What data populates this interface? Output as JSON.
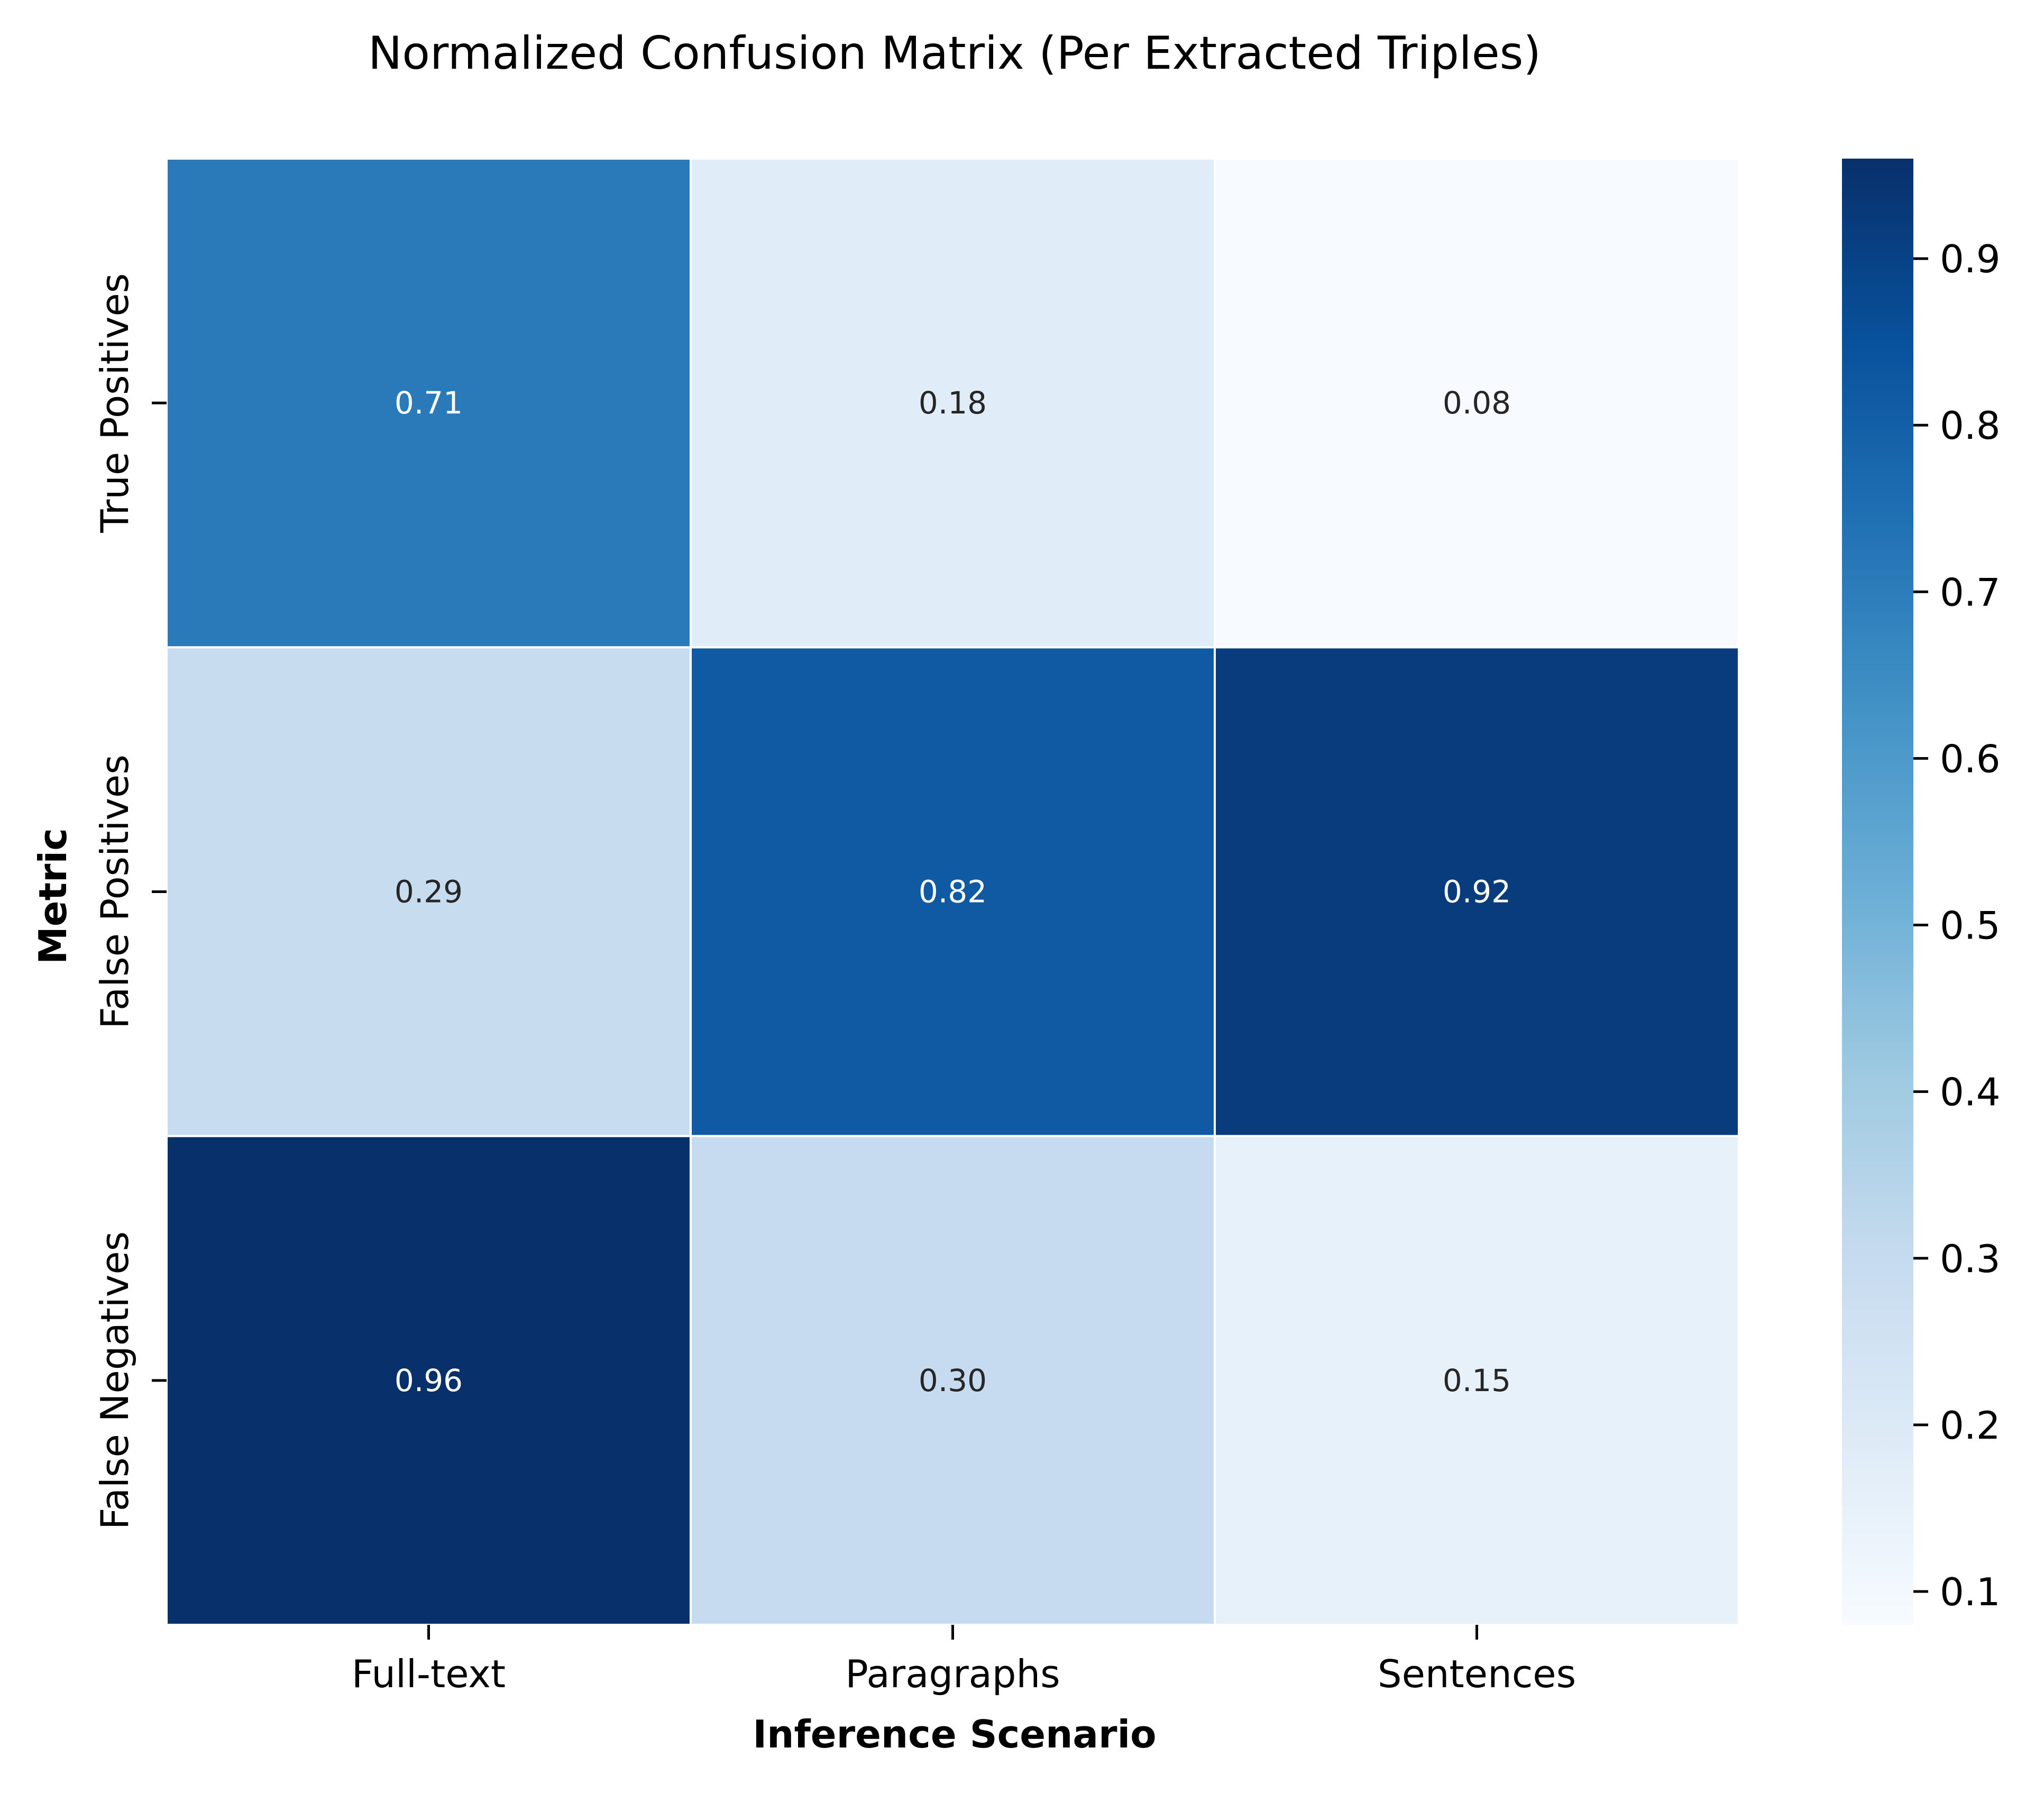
{
  "chart_data": {
    "type": "heatmap",
    "title": "Normalized Confusion Matrix (Per Extracted Triples)",
    "xlabel": "Inference Scenario",
    "ylabel": "Metric",
    "x_categories": [
      "Full-text",
      "Paragraphs",
      "Sentences"
    ],
    "y_categories": [
      "True Positives",
      "False Positives",
      "False Negatives"
    ],
    "values": [
      [
        0.71,
        0.18,
        0.08
      ],
      [
        0.29,
        0.82,
        0.92
      ],
      [
        0.96,
        0.3,
        0.15
      ]
    ],
    "value_labels": [
      [
        "0.71",
        "0.18",
        "0.08"
      ],
      [
        "0.29",
        "0.82",
        "0.92"
      ],
      [
        "0.96",
        "0.30",
        "0.15"
      ]
    ],
    "colormap": "Blues",
    "colorbar": {
      "vmin": 0.08,
      "vmax": 0.96,
      "ticks": [
        0.1,
        0.2,
        0.3,
        0.4,
        0.5,
        0.6,
        0.7,
        0.8,
        0.9
      ],
      "tick_labels": [
        "0.1",
        "0.2",
        "0.3",
        "0.4",
        "0.5",
        "0.6",
        "0.7",
        "0.8",
        "0.9"
      ]
    },
    "colors": {
      "annotation_dark_text": "#262626",
      "annotation_light_text": "#ffffff",
      "cell_border": "#ffffff"
    }
  }
}
